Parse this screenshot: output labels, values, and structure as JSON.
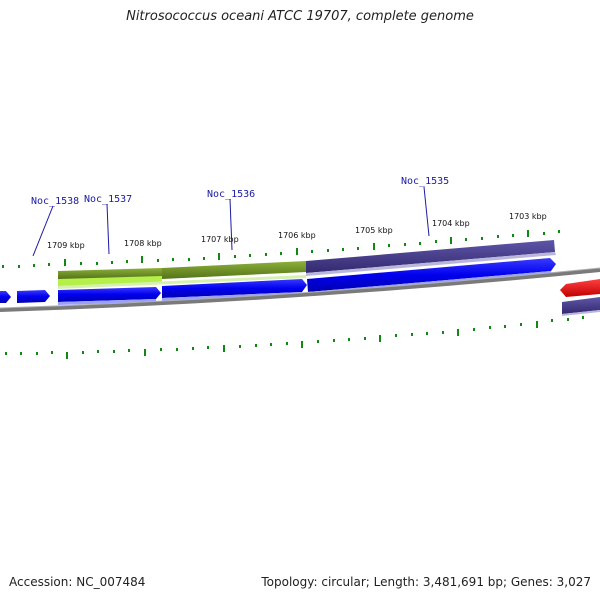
{
  "title": "Nitrosococcus oceani ATCC 19707, complete genome",
  "footer": {
    "accession": "Accession: NC_007484",
    "summary": "Topology: circular; Length: 3,481,691 bp; Genes: 3,027"
  },
  "scale_labels": [
    "1709 kbp",
    "1708 kbp",
    "1707 kbp",
    "1706 kbp",
    "1705 kbp",
    "1704 kbp",
    "1703 kbp"
  ],
  "gene_labels": [
    "Noc_1538",
    "Noc_1537",
    "Noc_1536",
    "Noc_1535"
  ],
  "colors": {
    "forward_gene": "#0000ee",
    "reverse_gene": "#ee0000",
    "cog_green": "#6b8e23",
    "cog_light_green": "#a8e040",
    "cog_purple": "#483d8b",
    "backbone": "#808080",
    "ticks": "#118811"
  }
}
